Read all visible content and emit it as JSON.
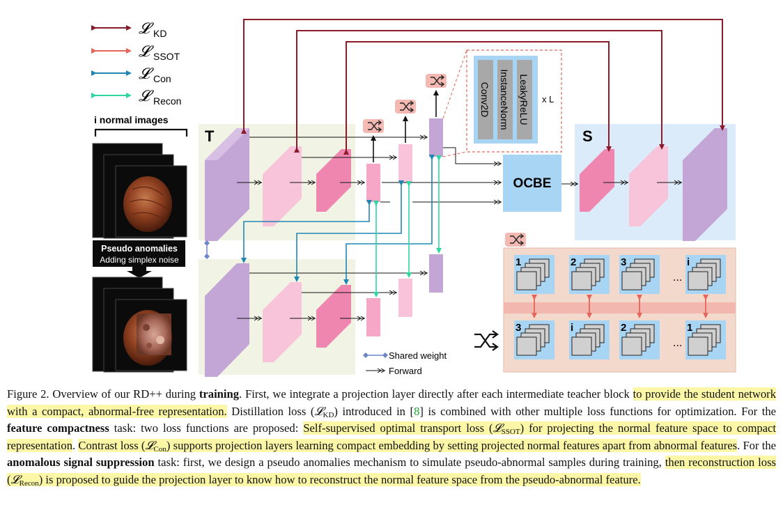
{
  "legend": {
    "losses": [
      {
        "symbol": "𝓛",
        "subscript": "KD",
        "color": "#8b1a2b"
      },
      {
        "symbol": "𝓛",
        "subscript": "SSOT",
        "color": "#e5655a"
      },
      {
        "symbol": "𝓛",
        "subscript": "Con",
        "color": "#1f86b3"
      },
      {
        "symbol": "𝓛",
        "subscript": "Recon",
        "color": "#2fd6a2"
      }
    ],
    "shared_weight": "Shared weight",
    "forward": "Forward"
  },
  "labels": {
    "normal_images": "i normal images",
    "pseudo_title": "Pseudo anomalies",
    "pseudo_subtitle": "Adding simplex noise",
    "teacher": "T",
    "student": "S",
    "ocbe": "OCBE",
    "proj_layers": [
      "Conv2D",
      "InstanceNorm",
      "LeakyReLU"
    ],
    "repeat": "x L",
    "ellipsis": "...",
    "top_row_ids": [
      "1",
      "2",
      "3",
      "i"
    ],
    "bottom_row_ids": [
      "3",
      "i",
      "2",
      "1"
    ]
  },
  "colors": {
    "teacher_bg": "#f1f4e4",
    "student_bg": "#dcebfa",
    "ot_bg": "#f3d9cc",
    "ot_band": "#f2b8b0",
    "purple_block": "#c4a6d6",
    "pink_block": "#f6b5d0",
    "pink_dark": "#ee86b0",
    "ocbe_box": "#a9d5f5",
    "shuffle_bg": "#f4b9b3"
  },
  "caption": {
    "label": "Figure 2. Overview of our RD++ during ",
    "label_bold": "training",
    "s1": ". First, we integrate a projection layer directly after each intermediate teacher block ",
    "h1": "to provide the student network with a compact, abnormal-free representation.",
    "s2": " Distillation loss (",
    "kd": "KD",
    "s3": ") introduced in [",
    "ref": "8",
    "s4": "] is combined with other multiple loss functions for optimization. For the ",
    "b1": "feature compactness",
    "s5": " task: two loss functions are proposed: ",
    "h2a": "Self-supervised optimal transport loss (",
    "ssot": "SSOT",
    "h2b": ") for projecting the normal feature space to compact representation",
    "s6": ". ",
    "h3a": "Contrast loss (",
    "con": "Con",
    "h3b": ") supports projection layers learning compact embedding by setting projected normal features apart from abnormal features",
    "s7": ". For the ",
    "b2": "anomalous signal suppression",
    "s8": " task: first, we design a pseudo anomalies mechanism to simulate pseudo-abnormal samples during training, ",
    "h4a": "then reconstruction loss (",
    "recon": "Recon",
    "h4b": ") is proposed to guide the projection layer to know how to reconstruct the normal feature space from the pseudo-abnormal feature."
  }
}
